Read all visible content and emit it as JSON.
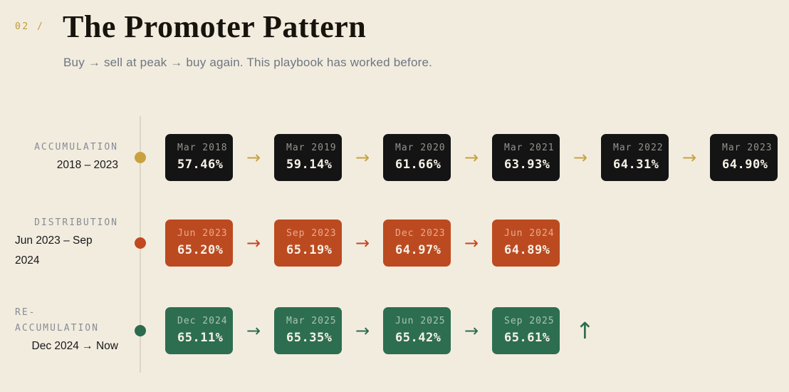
{
  "header": {
    "eyebrow": "02 /",
    "title": "The Promoter Pattern",
    "subtitle": "Buy → sell at peak → buy again. This playbook has worked before."
  },
  "icons": {
    "arrow_right": "→",
    "arrow_up": "↑"
  },
  "colors": {
    "background": "#f2ecdf",
    "timeline_line": "#ded6c5",
    "gold": "#c9a23f",
    "red": "#c2491f",
    "green": "#2d6b4f",
    "dark_box": "#141414",
    "value_text": "#f7f3e8",
    "phase_text": "#878c95",
    "subtitle_text": "#6f7681"
  },
  "rows": [
    {
      "phase_lines": [
        "ACCUMULATION"
      ],
      "range_lines": [
        "2018 – 2023"
      ],
      "accent": "#c9a23f",
      "box_bg": "#141414",
      "date_color": "#93938e",
      "up_arrow": false,
      "entries": [
        {
          "date": "Mar 2018",
          "value": "57.46%"
        },
        {
          "date": "Mar 2019",
          "value": "59.14%"
        },
        {
          "date": "Mar 2020",
          "value": "61.66%"
        },
        {
          "date": "Mar 2021",
          "value": "63.93%"
        },
        {
          "date": "Mar 2022",
          "value": "64.31%"
        },
        {
          "date": "Mar 2023",
          "value": "64.90%"
        }
      ]
    },
    {
      "phase_lines": [
        "DISTRIBUTION"
      ],
      "range_lines": [
        "Jun 2023 – Sep",
        "2024"
      ],
      "accent": "#c2491f",
      "box_bg": "#bc4a20",
      "date_color": "#eba98c",
      "up_arrow": false,
      "entries": [
        {
          "date": "Jun 2023",
          "value": "65.20%"
        },
        {
          "date": "Sep 2023",
          "value": "65.19%"
        },
        {
          "date": "Dec 2023",
          "value": "64.97%"
        },
        {
          "date": "Jun 2024",
          "value": "64.89%"
        }
      ]
    },
    {
      "phase_lines": [
        "RE-",
        "ACCUMULATION"
      ],
      "range_lines": [
        "Dec 2024 → Now"
      ],
      "accent": "#2d6b4f",
      "box_bg": "#2d6e50",
      "date_color": "#a9c4b1",
      "up_arrow": true,
      "entries": [
        {
          "date": "Dec 2024",
          "value": "65.11%"
        },
        {
          "date": "Mar 2025",
          "value": "65.35%"
        },
        {
          "date": "Jun 2025",
          "value": "65.42%"
        },
        {
          "date": "Sep 2025",
          "value": "65.61%"
        }
      ]
    }
  ]
}
